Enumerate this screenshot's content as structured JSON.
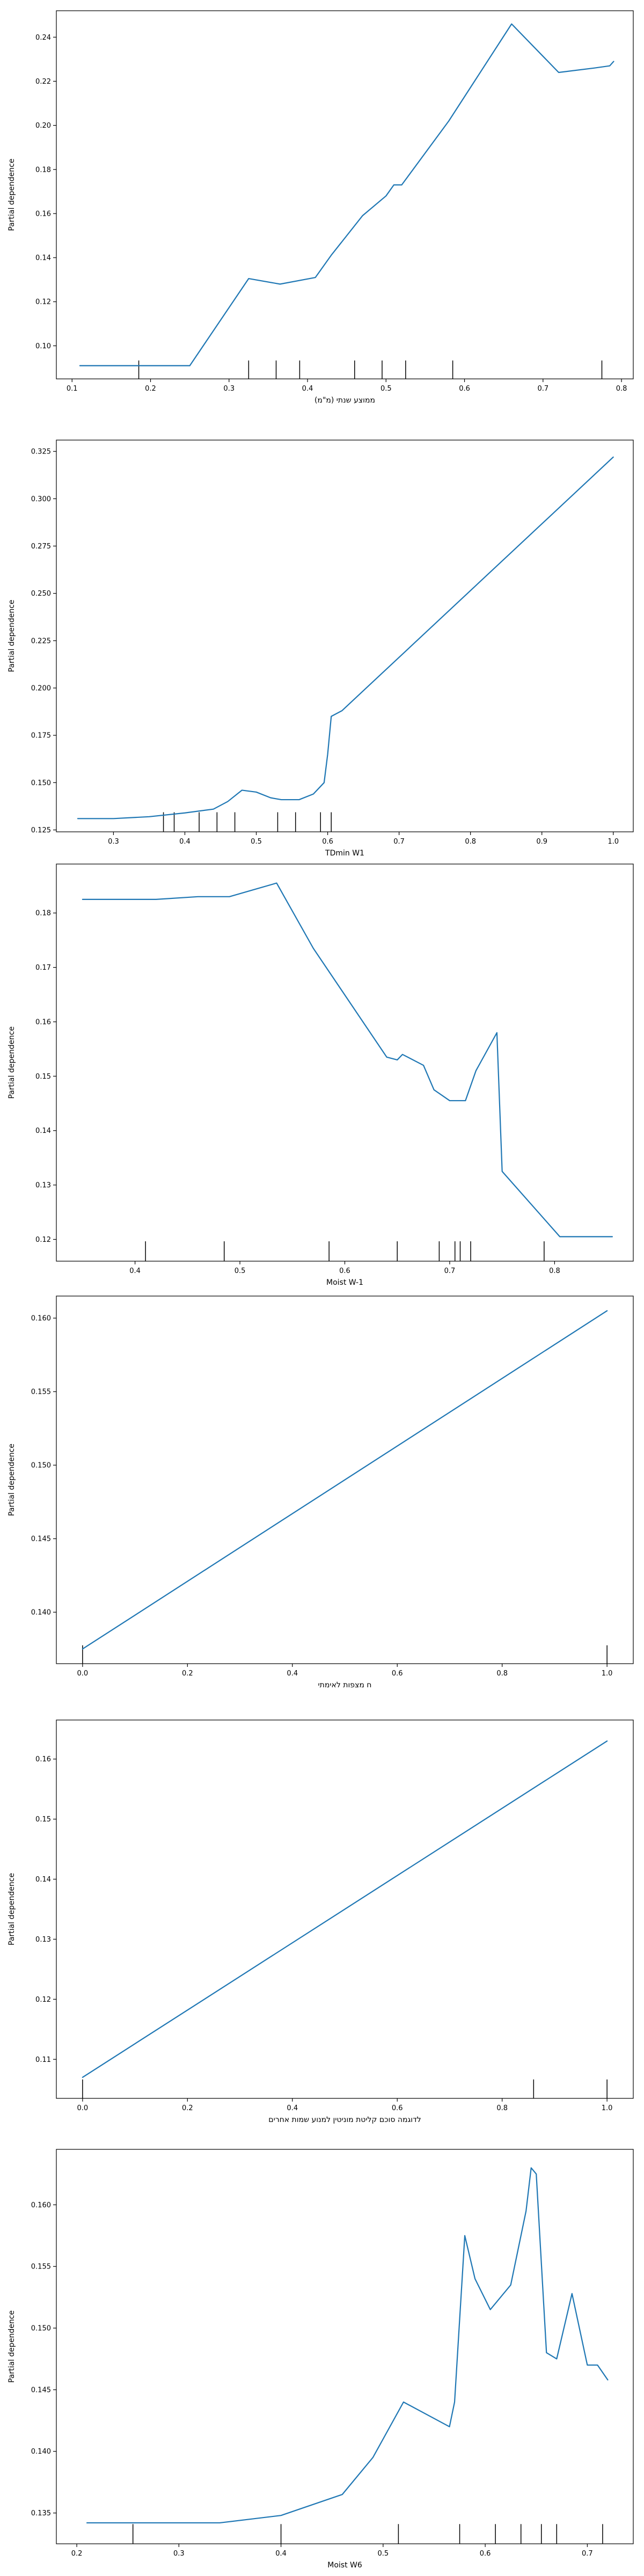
{
  "figure": {
    "line_color": "#1f77b4",
    "axis_color": "#000000",
    "background": "#ffffff"
  },
  "chart_data": [
    {
      "type": "line",
      "title": "",
      "xlabel": "ממוצע שנתי (מ\"מ)",
      "ylabel": "Partial dependence",
      "xlim": [
        0.08,
        0.815
      ],
      "ylim": [
        0.085,
        0.252
      ],
      "xticks": [
        0.1,
        0.2,
        0.3,
        0.4,
        0.5,
        0.6,
        0.7,
        0.8
      ],
      "xtick_labels": [
        "0.1",
        "0.2",
        "0.3",
        "0.4",
        "0.5",
        "0.6",
        "0.7",
        "0.8"
      ],
      "yticks": [
        0.1,
        0.12,
        0.14,
        0.16,
        0.18,
        0.2,
        0.22,
        0.24
      ],
      "ytick_labels": [
        "0.10",
        "0.12",
        "0.14",
        "0.16",
        "0.18",
        "0.20",
        "0.22",
        "0.24"
      ],
      "grid": false,
      "x": [
        0.11,
        0.155,
        0.2,
        0.25,
        0.325,
        0.365,
        0.41,
        0.43,
        0.47,
        0.5,
        0.51,
        0.52,
        0.58,
        0.66,
        0.72,
        0.765,
        0.785,
        0.79
      ],
      "y": [
        0.091,
        0.091,
        0.091,
        0.091,
        0.1305,
        0.128,
        0.131,
        0.141,
        0.159,
        0.168,
        0.173,
        0.173,
        0.202,
        0.246,
        0.224,
        0.226,
        0.227,
        0.229
      ],
      "deciles": [
        0.185,
        0.325,
        0.36,
        0.39,
        0.46,
        0.495,
        0.525,
        0.585,
        0.775
      ]
    },
    {
      "type": "line",
      "title": "",
      "xlabel": "TDmin W1",
      "ylabel": "Partial dependence",
      "xlim": [
        0.22,
        1.028
      ],
      "ylim": [
        0.124,
        0.331
      ],
      "xticks": [
        0.3,
        0.4,
        0.5,
        0.6,
        0.7,
        0.8,
        0.9,
        1.0
      ],
      "xtick_labels": [
        "0.3",
        "0.4",
        "0.5",
        "0.6",
        "0.7",
        "0.8",
        "0.9",
        "1.0"
      ],
      "yticks": [
        0.125,
        0.15,
        0.175,
        0.2,
        0.225,
        0.25,
        0.275,
        0.3,
        0.325
      ],
      "ytick_labels": [
        "0.125",
        "0.150",
        "0.175",
        "0.200",
        "0.225",
        "0.250",
        "0.275",
        "0.300",
        "0.325"
      ],
      "grid": false,
      "x": [
        0.25,
        0.3,
        0.35,
        0.4,
        0.44,
        0.46,
        0.48,
        0.5,
        0.52,
        0.535,
        0.545,
        0.56,
        0.58,
        0.595,
        0.6,
        0.605,
        0.62,
        1.0
      ],
      "y": [
        0.131,
        0.131,
        0.132,
        0.134,
        0.136,
        0.14,
        0.146,
        0.145,
        0.142,
        0.141,
        0.141,
        0.141,
        0.144,
        0.15,
        0.165,
        0.185,
        0.188,
        0.322
      ],
      "deciles": [
        0.37,
        0.385,
        0.42,
        0.445,
        0.47,
        0.53,
        0.555,
        0.59,
        0.605
      ]
    },
    {
      "type": "line",
      "title": "",
      "xlabel": "Moist W-1",
      "ylabel": "Partial dependence",
      "xlim": [
        0.325,
        0.875
      ],
      "ylim": [
        0.116,
        0.189
      ],
      "xticks": [
        0.4,
        0.5,
        0.6,
        0.7,
        0.8
      ],
      "xtick_labels": [
        "0.4",
        "0.5",
        "0.6",
        "0.7",
        "0.8"
      ],
      "yticks": [
        0.12,
        0.13,
        0.14,
        0.15,
        0.16,
        0.17,
        0.18
      ],
      "ytick_labels": [
        "0.12",
        "0.13",
        "0.14",
        "0.15",
        "0.16",
        "0.17",
        "0.18"
      ],
      "grid": false,
      "x": [
        0.35,
        0.42,
        0.46,
        0.49,
        0.535,
        0.57,
        0.64,
        0.65,
        0.655,
        0.675,
        0.685,
        0.7,
        0.715,
        0.725,
        0.745,
        0.75,
        0.805,
        0.855
      ],
      "y": [
        0.1825,
        0.1825,
        0.183,
        0.183,
        0.1855,
        0.1735,
        0.1535,
        0.153,
        0.154,
        0.152,
        0.1475,
        0.1455,
        0.1455,
        0.151,
        0.158,
        0.1325,
        0.1205,
        0.1205
      ],
      "deciles": [
        0.41,
        0.485,
        0.585,
        0.65,
        0.69,
        0.705,
        0.71,
        0.72,
        0.79
      ]
    },
    {
      "type": "line",
      "title": "",
      "xlabel": "ח מצפות לאימתי",
      "ylabel": "Partial dependence",
      "xlim": [
        -0.05,
        1.05
      ],
      "ylim": [
        0.1365,
        0.1615
      ],
      "xticks": [
        0.0,
        0.2,
        0.4,
        0.6,
        0.8,
        1.0
      ],
      "xtick_labels": [
        "0.0",
        "0.2",
        "0.4",
        "0.6",
        "0.8",
        "1.0"
      ],
      "yticks": [
        0.14,
        0.145,
        0.15,
        0.155,
        0.16
      ],
      "ytick_labels": [
        "0.140",
        "0.145",
        "0.150",
        "0.155",
        "0.160"
      ],
      "grid": false,
      "x": [
        0.0,
        1.0
      ],
      "y": [
        0.1375,
        0.1605
      ],
      "deciles": [
        0.0,
        1.0
      ]
    },
    {
      "type": "line",
      "title": "",
      "xlabel": "לדוגמה סוכם קליטת מוניטין למנוע שמות אחרים",
      "ylabel": "Partial dependence",
      "xlim": [
        -0.05,
        1.05
      ],
      "ylim": [
        0.1035,
        0.1665
      ],
      "xticks": [
        0.0,
        0.2,
        0.4,
        0.6,
        0.8,
        1.0
      ],
      "xtick_labels": [
        "0.0",
        "0.2",
        "0.4",
        "0.6",
        "0.8",
        "1.0"
      ],
      "yticks": [
        0.11,
        0.12,
        0.13,
        0.14,
        0.15,
        0.16
      ],
      "ytick_labels": [
        "0.11",
        "0.12",
        "0.13",
        "0.14",
        "0.15",
        "0.16"
      ],
      "grid": false,
      "x": [
        0.0,
        1.0
      ],
      "y": [
        0.107,
        0.163
      ],
      "deciles": [
        0.0,
        0.86,
        1.0
      ]
    },
    {
      "type": "line",
      "title": "",
      "xlabel": "Moist W6",
      "ylabel": "Partial dependence",
      "xlim": [
        0.18,
        0.745
      ],
      "ylim": [
        0.1325,
        0.1645
      ],
      "xticks": [
        0.2,
        0.3,
        0.4,
        0.5,
        0.6,
        0.7
      ],
      "xtick_labels": [
        "0.2",
        "0.3",
        "0.4",
        "0.5",
        "0.6",
        "0.7"
      ],
      "yticks": [
        0.135,
        0.14,
        0.145,
        0.15,
        0.155,
        0.16
      ],
      "ytick_labels": [
        "0.135",
        "0.140",
        "0.145",
        "0.150",
        "0.155",
        "0.160"
      ],
      "grid": false,
      "x": [
        0.21,
        0.26,
        0.34,
        0.4,
        0.46,
        0.49,
        0.52,
        0.565,
        0.57,
        0.58,
        0.59,
        0.605,
        0.625,
        0.64,
        0.645,
        0.65,
        0.66,
        0.67,
        0.685,
        0.7,
        0.71,
        0.72
      ],
      "y": [
        0.1342,
        0.1342,
        0.1342,
        0.1348,
        0.1365,
        0.1395,
        0.144,
        0.142,
        0.144,
        0.1575,
        0.154,
        0.1515,
        0.1535,
        0.1595,
        0.163,
        0.1625,
        0.148,
        0.1475,
        0.1528,
        0.147,
        0.147,
        0.1458
      ],
      "deciles": [
        0.255,
        0.4,
        0.515,
        0.575,
        0.61,
        0.635,
        0.655,
        0.67,
        0.715
      ]
    }
  ]
}
